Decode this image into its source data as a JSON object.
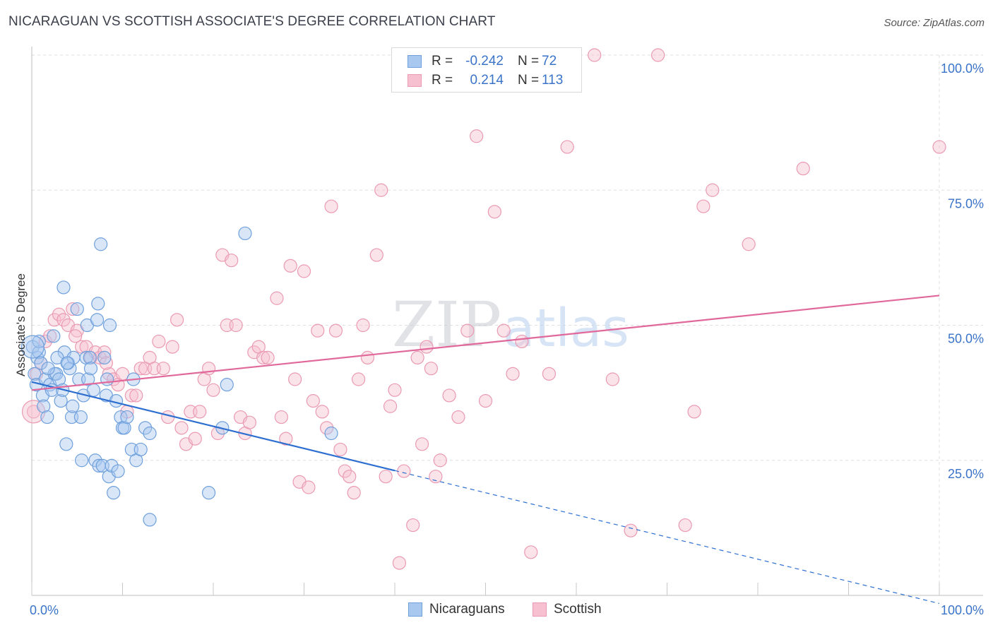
{
  "title": "NICARAGUAN VS SCOTTISH ASSOCIATE'S DEGREE CORRELATION CHART",
  "source": "Source: ZipAtlas.com",
  "watermark": {
    "zip": "ZIP",
    "atlas": "atlas"
  },
  "legend_top": [
    {
      "r_label": "R =",
      "r_value": "-0.242",
      "n_label": "N =",
      "n_value": "72"
    },
    {
      "r_label": "R =",
      "r_value": "0.214",
      "n_label": "N =",
      "n_value": "113"
    }
  ],
  "legend_bottom": [
    {
      "label": "Nicaraguans"
    },
    {
      "label": "Scottish"
    }
  ],
  "colors": {
    "blue_fill": "#a8c8f0",
    "blue_stroke": "#6fa0dc",
    "blue_line": "#2d6fd0",
    "pink_fill": "#f7c0d0",
    "pink_stroke": "#ea9ab2",
    "pink_line": "#e0689a",
    "tick_text": "#3a73c8",
    "grid": "#dddddd"
  },
  "chart_data": {
    "type": "scatter",
    "title": "NICARAGUAN VS SCOTTISH ASSOCIATE'S DEGREE CORRELATION CHART",
    "xlabel": "",
    "ylabel": "Associate's Degree",
    "xlim": [
      0,
      100
    ],
    "ylim": [
      0,
      100
    ],
    "x_tick_labels": [
      {
        "value": 0,
        "label": "0.0%"
      },
      {
        "value": 100,
        "label": "100.0%"
      }
    ],
    "y_tick_labels": [
      {
        "value": 25,
        "label": "25.0%"
      },
      {
        "value": 50,
        "label": "50.0%"
      },
      {
        "value": 75,
        "label": "75.0%"
      },
      {
        "value": 100,
        "label": "100.0%"
      }
    ],
    "series": [
      {
        "name": "Nicaraguans",
        "r": -0.242,
        "n": 72,
        "trend": {
          "x0": 0,
          "y0": 39.5,
          "x1": 100,
          "y1": -1.5,
          "solid_until": 40
        },
        "points": [
          [
            0.1,
            46
          ],
          [
            0.3,
            41
          ],
          [
            0.5,
            39
          ],
          [
            0.6,
            44
          ],
          [
            0.8,
            45
          ],
          [
            1,
            43
          ],
          [
            1.2,
            37
          ],
          [
            1.3,
            35
          ],
          [
            1.5,
            40
          ],
          [
            1.7,
            33
          ],
          [
            2,
            39
          ],
          [
            2.2,
            38
          ],
          [
            2.4,
            48
          ],
          [
            2.5,
            41
          ],
          [
            2.7,
            41
          ],
          [
            3,
            40
          ],
          [
            3.2,
            36
          ],
          [
            3.4,
            38
          ],
          [
            3.5,
            57
          ],
          [
            3.6,
            45
          ],
          [
            3.8,
            28
          ],
          [
            4,
            43
          ],
          [
            4.2,
            42
          ],
          [
            4.4,
            33
          ],
          [
            4.5,
            35
          ],
          [
            4.6,
            44
          ],
          [
            5,
            53
          ],
          [
            5.2,
            40
          ],
          [
            5.4,
            33
          ],
          [
            5.5,
            25
          ],
          [
            5.7,
            37
          ],
          [
            6,
            44
          ],
          [
            6.1,
            50
          ],
          [
            6.2,
            40
          ],
          [
            6.4,
            44
          ],
          [
            6.5,
            42
          ],
          [
            6.8,
            38
          ],
          [
            7,
            25
          ],
          [
            7.2,
            51
          ],
          [
            7.3,
            54
          ],
          [
            7.4,
            24
          ],
          [
            7.6,
            65
          ],
          [
            7.8,
            24
          ],
          [
            8,
            44
          ],
          [
            8.2,
            37
          ],
          [
            8.3,
            40
          ],
          [
            8.5,
            22
          ],
          [
            8.6,
            50
          ],
          [
            8.8,
            24
          ],
          [
            9,
            19
          ],
          [
            9.3,
            36
          ],
          [
            9.5,
            23
          ],
          [
            9.8,
            33
          ],
          [
            10,
            31
          ],
          [
            10.2,
            31
          ],
          [
            10.5,
            33
          ],
          [
            11,
            27
          ],
          [
            11.2,
            40
          ],
          [
            11.5,
            25
          ],
          [
            12,
            27
          ],
          [
            12.5,
            31
          ],
          [
            13,
            30
          ],
          [
            13,
            14
          ],
          [
            19.5,
            19
          ],
          [
            21,
            31
          ],
          [
            21.5,
            39
          ],
          [
            23.5,
            67
          ],
          [
            33,
            30
          ],
          [
            0.8,
            47
          ],
          [
            1.8,
            42
          ],
          [
            2.8,
            44
          ],
          [
            3.9,
            43
          ]
        ]
      },
      {
        "name": "Scottish",
        "r": 0.214,
        "n": 113,
        "trend": {
          "x0": 0,
          "y0": 38,
          "x1": 100,
          "y1": 55.5
        },
        "points": [
          [
            0.2,
            34
          ],
          [
            0.5,
            41
          ],
          [
            1,
            43
          ],
          [
            1.5,
            47
          ],
          [
            2,
            48
          ],
          [
            2.5,
            51
          ],
          [
            3,
            52
          ],
          [
            3.5,
            51
          ],
          [
            4,
            50
          ],
          [
            4.5,
            53
          ],
          [
            5,
            49
          ],
          [
            5.5,
            46
          ],
          [
            6,
            46
          ],
          [
            6.5,
            44
          ],
          [
            7,
            45
          ],
          [
            7.5,
            44
          ],
          [
            8,
            45
          ],
          [
            8.5,
            41
          ],
          [
            9,
            40
          ],
          [
            9.5,
            39
          ],
          [
            10,
            41
          ],
          [
            10.5,
            34
          ],
          [
            11,
            37
          ],
          [
            11.5,
            37
          ],
          [
            12,
            42
          ],
          [
            12.5,
            42
          ],
          [
            13,
            44
          ],
          [
            13.5,
            42
          ],
          [
            14,
            47
          ],
          [
            14.5,
            42
          ],
          [
            15,
            33
          ],
          [
            15.5,
            46
          ],
          [
            16,
            51
          ],
          [
            16.5,
            31
          ],
          [
            17,
            28
          ],
          [
            17.5,
            34
          ],
          [
            18,
            29
          ],
          [
            18.5,
            34
          ],
          [
            19,
            40
          ],
          [
            19.5,
            42
          ],
          [
            20,
            38
          ],
          [
            20.5,
            30
          ],
          [
            21,
            63
          ],
          [
            21.5,
            50
          ],
          [
            22,
            62
          ],
          [
            22.5,
            50
          ],
          [
            23,
            33
          ],
          [
            23.5,
            30
          ],
          [
            24,
            32
          ],
          [
            24.5,
            45
          ],
          [
            25,
            46
          ],
          [
            25.5,
            44
          ],
          [
            26,
            44
          ],
          [
            27,
            55
          ],
          [
            27.5,
            33
          ],
          [
            28,
            29
          ],
          [
            28.5,
            61
          ],
          [
            29,
            40
          ],
          [
            29.5,
            21
          ],
          [
            30,
            60
          ],
          [
            30.5,
            20
          ],
          [
            31,
            36
          ],
          [
            31.5,
            49
          ],
          [
            32,
            34
          ],
          [
            32.5,
            31
          ],
          [
            33,
            72
          ],
          [
            33.5,
            49
          ],
          [
            34,
            27
          ],
          [
            34.5,
            23
          ],
          [
            35,
            22
          ],
          [
            35.5,
            19
          ],
          [
            36,
            40
          ],
          [
            36.5,
            50
          ],
          [
            37,
            44
          ],
          [
            38,
            63
          ],
          [
            38.5,
            75
          ],
          [
            39,
            22
          ],
          [
            39.5,
            35
          ],
          [
            40,
            38
          ],
          [
            40.5,
            6
          ],
          [
            41,
            23
          ],
          [
            42,
            13
          ],
          [
            42.5,
            44
          ],
          [
            43,
            28
          ],
          [
            43.5,
            46
          ],
          [
            44,
            42
          ],
          [
            44.5,
            22
          ],
          [
            45,
            25
          ],
          [
            46,
            37
          ],
          [
            47,
            33
          ],
          [
            48,
            49
          ],
          [
            49,
            85
          ],
          [
            50,
            36
          ],
          [
            51,
            71
          ],
          [
            52,
            49
          ],
          [
            53,
            41
          ],
          [
            54,
            47
          ],
          [
            55,
            8
          ],
          [
            57,
            41
          ],
          [
            59,
            83
          ],
          [
            62,
            100
          ],
          [
            64,
            40
          ],
          [
            66,
            12
          ],
          [
            69,
            100
          ],
          [
            72,
            13
          ],
          [
            73,
            34
          ],
          [
            74,
            72
          ],
          [
            75,
            75
          ],
          [
            79,
            65
          ],
          [
            85,
            79
          ],
          [
            100,
            83
          ],
          [
            4.8,
            48
          ],
          [
            8.2,
            43
          ]
        ]
      }
    ]
  }
}
